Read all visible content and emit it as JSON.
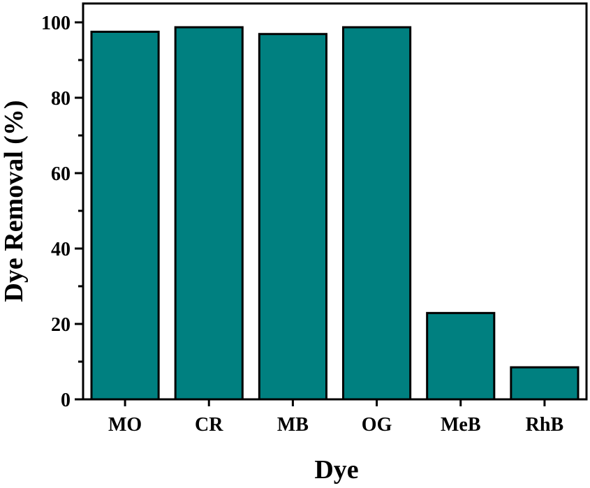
{
  "chart_data": {
    "type": "bar",
    "categories": [
      "MO",
      "CR",
      "MB",
      "OG",
      "MeB",
      "RhB"
    ],
    "values": [
      97.5,
      98.7,
      96.9,
      98.7,
      22.9,
      8.5
    ],
    "title": "",
    "xlabel": "Dye",
    "ylabel": "Dye Removal (%)",
    "ylim": [
      0,
      105
    ],
    "yticks": [
      0,
      20,
      40,
      60,
      80,
      100
    ],
    "grid": false,
    "bar_color": "#008080",
    "edge_color": "#000000"
  }
}
